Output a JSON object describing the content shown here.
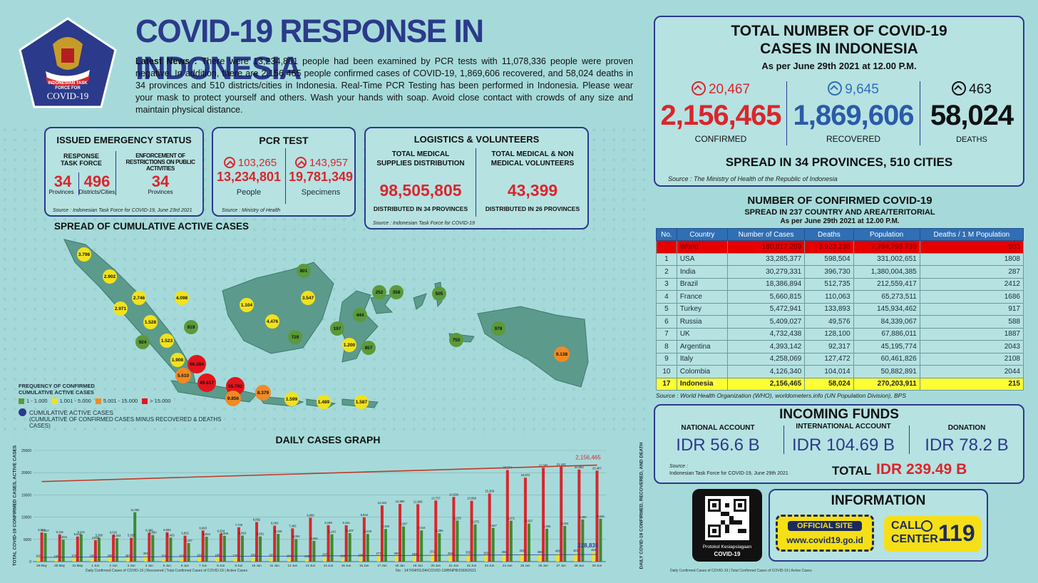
{
  "header": {
    "title": "COVID-19 RESPONSE IN INDONESIA",
    "logo_text_1": "INDONESIAN TASK",
    "logo_text_2": "FORCE FOR",
    "logo_text_3": "COVID-19",
    "news_label": "Latest News :",
    "news_text": "There were 13,234,801 people had been examined by PCR tests with 11,078,336 people were proven negative. In addition, there are 2,156,465 people confirmed cases of COVID-19, 1,869,606 recovered, and 58,024 deaths in 34 provinces and 510 districts/cities in Indonesia. Real-Time PCR Testing has been performed in Indonesia. Please wear your mask to protect yourself and others. Wash your hands with soap. Avoid close contact with crowds of any size and maintain physical distance."
  },
  "emergency": {
    "title": "ISSUED EMERGENCY STATUS",
    "col1_label": "RESPONSE TASK FORCE",
    "col2_label": "ENFORCEMENT OF RESTRICTIONS ON PUBLIC ACTIVITIES",
    "provinces_value": "34",
    "provinces_label": "Provinces",
    "districts_value": "496",
    "districts_label": "Districts/Cities",
    "enforcement_value": "34",
    "enforcement_label": "Provinces",
    "source": "Source : Indonesian Task Force for COVID-19, June 23rd 2021"
  },
  "pcr": {
    "title": "PCR TEST",
    "people_delta": "103,265",
    "people_value": "13,234,801",
    "people_label": "People",
    "specimens_delta": "143,957",
    "specimens_value": "19,781,349",
    "specimens_label": "Specimens",
    "source": "Source : Ministry of Health"
  },
  "logistics": {
    "title": "LOGISTICS & VOLUNTEERS",
    "col1_label": "TOTAL MEDICAL SUPPLIES DISTRIBUTION",
    "col1_value": "98,505,805",
    "col1_note": "DISTRIBUTED IN 34 PROVINCES",
    "col2_label": "TOTAL MEDICAL & NON MEDICAL VOLUNTEERS",
    "col2_value": "43,399",
    "col2_note": "DISTRIBUTED IN 26 PROVINCES",
    "source": "Source : Indonesian Task Force for COVID-19"
  },
  "map": {
    "title": "SPREAD OF CUMULATIVE ACTIVE CASES",
    "legend_title_1": "FREQUENCY OF CONFIRMED",
    "legend_title_2": "CUMULATIVE ACTIVE CASES",
    "legend_items": [
      {
        "label": "1 - 1.000",
        "color": "#5a9a3a"
      },
      {
        "label": "1.001 - 5.000",
        "color": "#f2e21c"
      },
      {
        "label": "5.001 - 15.000",
        "color": "#f08a24"
      },
      {
        "label": "> 15.000",
        "color": "#e4141c"
      }
    ],
    "cumulative_label": "CUMULATIVE ACTIVE CASES",
    "cumulative_note": "(CUMULATIVE OF CONFIRMED CASES MINUS RECOVERED & DEATHS CASES)",
    "bubbles": [
      {
        "label": "3.798",
        "color": "#f2e21c"
      },
      {
        "label": "2.902",
        "color": "#f2e21c"
      },
      {
        "label": "2.971",
        "color": "#f2e21c"
      },
      {
        "label": "2.746",
        "color": "#f2e21c"
      },
      {
        "label": "4.098",
        "color": "#f2e21c"
      },
      {
        "label": "1.528",
        "color": "#f2e21c"
      },
      {
        "label": "919",
        "color": "#5a9a3a"
      },
      {
        "label": "924",
        "color": "#5a9a3a"
      },
      {
        "label": "1.523",
        "color": "#f2e21c"
      },
      {
        "label": "1.908",
        "color": "#f2e21c"
      },
      {
        "label": "5.610",
        "color": "#f08a24"
      },
      {
        "label": "66.284",
        "color": "#e4141c"
      },
      {
        "label": "49.817",
        "color": "#e4141c"
      },
      {
        "label": "55.792",
        "color": "#e4141c"
      },
      {
        "label": "9.856",
        "color": "#f08a24"
      },
      {
        "label": "8.379",
        "color": "#f08a24"
      },
      {
        "label": "1.599",
        "color": "#f2e21c"
      },
      {
        "label": "1.489",
        "color": "#f2e21c"
      },
      {
        "label": "1.587",
        "color": "#f2e21c"
      },
      {
        "label": "1.104",
        "color": "#f2e21c"
      },
      {
        "label": "801",
        "color": "#5a9a3a"
      },
      {
        "label": "3.547",
        "color": "#f2e21c"
      },
      {
        "label": "4.476",
        "color": "#f2e21c"
      },
      {
        "label": "729",
        "color": "#5a9a3a"
      },
      {
        "label": "252",
        "color": "#5a9a3a"
      },
      {
        "label": "358",
        "color": "#5a9a3a"
      },
      {
        "label": "505",
        "color": "#5a9a3a"
      },
      {
        "label": "444",
        "color": "#5a9a3a"
      },
      {
        "label": "197",
        "color": "#5a9a3a"
      },
      {
        "label": "1.200",
        "color": "#f2e21c"
      },
      {
        "label": "857",
        "color": "#5a9a3a"
      },
      {
        "label": "750",
        "color": "#5a9a3a"
      },
      {
        "label": "978",
        "color": "#5a9a3a"
      },
      {
        "label": "9.138",
        "color": "#f08a24"
      }
    ]
  },
  "totals": {
    "title_1": "TOTAL NUMBER OF COVID-19",
    "title_2": "CASES IN INDONESIA",
    "as_of": "As per June 29th 2021 at 12.00 P.M.",
    "confirmed_delta": "20,467",
    "confirmed_value": "2,156,465",
    "confirmed_label": "CONFIRMED",
    "recovered_delta": "9,645",
    "recovered_value": "1,869,606",
    "recovered_label": "RECOVERED",
    "deaths_delta": "463",
    "deaths_value": "58,024",
    "deaths_label": "DEATHS",
    "spread": "SPREAD IN 34 PROVINCES, 510 CITIES",
    "source": "Source : The Ministry of Health of the Republic of Indonesia"
  },
  "world_table": {
    "title_1": "NUMBER OF CONFIRMED COVID-19",
    "title_2": "SPREAD IN 237 COUNTRY AND AREA/TERITORIAL",
    "title_3": "As per June 29th 2021 at 12.00 P.M.",
    "headers": [
      "No.",
      "Country",
      "Number of Cases",
      "Deaths",
      "Population",
      "Deaths / 1 M Population"
    ],
    "world_row": [
      "",
      "World",
      "180,817,269",
      "3,923,238",
      "7,794,798,739",
      "503"
    ],
    "rows": [
      [
        "1",
        "USA",
        "33,285,377",
        "598,504",
        "331,002,651",
        "1808"
      ],
      [
        "2",
        "India",
        "30,279,331",
        "396,730",
        "1,380,004,385",
        "287"
      ],
      [
        "3",
        "Brazil",
        "18,386,894",
        "512,735",
        "212,559,417",
        "2412"
      ],
      [
        "4",
        "France",
        "5,660,815",
        "110,063",
        "65,273,511",
        "1686"
      ],
      [
        "5",
        "Turkey",
        "5,472,941",
        "133,893",
        "145,934,462",
        "917"
      ],
      [
        "6",
        "Russia",
        "5,409,027",
        "49,576",
        "84,339,067",
        "588"
      ],
      [
        "7",
        "UK",
        "4,732,438",
        "128,100",
        "67,886,011",
        "1887"
      ],
      [
        "8",
        "Argentina",
        "4,393,142",
        "92,317",
        "45,195,774",
        "2043"
      ],
      [
        "9",
        "Italy",
        "4,258,069",
        "127,472",
        "60,461,826",
        "2108"
      ],
      [
        "10",
        "Colombia",
        "4,126,340",
        "104,014",
        "50,882,891",
        "2044"
      ]
    ],
    "indonesia_row": [
      "17",
      "Indonesia",
      "2,156,465",
      "58,024",
      "270,203,911",
      "215"
    ],
    "source": "Source : World Health Organization (WHO), worldometers.info (UN Population Division), BPS"
  },
  "funds": {
    "title": "INCOMING FUNDS",
    "national_label": "NATIONAL ACCOUNT",
    "national_value": "IDR 56.6 B",
    "international_label": "INTERNATIONAL ACCOUNT",
    "international_value": "IDR 104.69 B",
    "donation_label": "DONATION",
    "donation_value": "IDR 78.2 B",
    "source_1": "Source :",
    "source_2": "Indonesian Task Force for COVID-19, June 29th 2021",
    "total_label": "TOTAL",
    "total_value": "IDR 239.49 B"
  },
  "info": {
    "qr_label_1": "Protokol Kesiapsiagaan",
    "qr_label_2": "COVID-19",
    "title": "INFORMATION",
    "official_site_label": "OFFICIAL SITE",
    "official_site_url": "www.covid19.go.id",
    "call_label_1": "CALL",
    "call_label_2": "CENTER",
    "call_number": "119"
  },
  "chart_data": {
    "type": "bar",
    "title": "DAILY CASES GRAPH",
    "ylabel_left": "TOTAL COVID-19 CONFIRMED CASES, ACTIVE CASES",
    "ylabel_right": "DAILY COVID-19 CONFIRMED, RECOVERED, AND DEATH",
    "ylim": [
      0,
      25000
    ],
    "left_ticks": [
      "0",
      "5000",
      "10000",
      "15000",
      "20000",
      "25000"
    ],
    "categories": [
      "29 May",
      "30 May",
      "31 May",
      "1 Jun",
      "2 Jun",
      "3 Jun",
      "4 Jun",
      "5 Jun",
      "6 Jun",
      "7 Jun",
      "8 Jun",
      "9 Jun",
      "10 Jun",
      "11 Jun",
      "12 Jun",
      "13 Jun",
      "14 Jun",
      "15 Jun",
      "16 Jun",
      "17 Jun",
      "18 Jun",
      "19 Jun",
      "20 Jun",
      "21 Jun",
      "22 Jun",
      "23 Jun",
      "24 Jun",
      "25 Jun",
      "26 Jun",
      "27 Jun",
      "28 Jun",
      "29 Jun"
    ],
    "series": [
      {
        "values": [
          6565,
          6115,
          5642,
          4824,
          6022,
          5353,
          6486,
          6594,
          5832,
          6993,
          6294,
          7725,
          8892,
          8083,
          7465,
          9868,
          8189,
          8161,
          9944,
          12624,
          12990,
          12906,
          13737,
          14536,
          13668,
          15308,
          20574,
          18872,
          21095,
          21342,
          20694,
          20467
        ],
        "color": "#d9262c"
      },
      {
        "values": [
          6417,
          4934,
          6121,
          5360,
          5263,
          11092,
          5990,
          5403,
          4187,
          5594,
          5805,
          5863,
          5661,
          6230,
          5092,
          4665,
          6143,
          6407,
          6229,
          7350,
          7907,
          7016,
          6385,
          9233,
          8375,
          7567,
          9201,
          8557,
          7396,
          8024,
          9480,
          9645
        ],
        "color": "#3d8a2e"
      },
      {
        "values": [
          162,
          140,
          174,
          155,
          185,
          187,
          281,
          153,
          163,
          191,
          189,
          170,
          211,
          193,
          164,
          149,
          237,
          164,
          196,
          277,
          290,
          248,
          371,
          294,
          335,
          303,
          355,
          422,
          358,
          409,
          423,
          463
        ],
        "color": "#f2e21c"
      }
    ],
    "confirmed_total_label": "2,156,465",
    "active_total_label": "228,835",
    "first_value_labels": [
      "6,565",
      "6,417",
      "162"
    ],
    "footer_left": "Daily Confirmed Cases of COVID-19 | Recovered | Total Confirmed Cases of COVID-19 | Active Cases",
    "footer_mid": "No : 147/04/01/04/COVID-19/BNPB/29062021",
    "footer_right": "Daily Confirmed Cases of COVID-19 | Total Confirmed Cases of COVID-19 | Active Cases"
  }
}
